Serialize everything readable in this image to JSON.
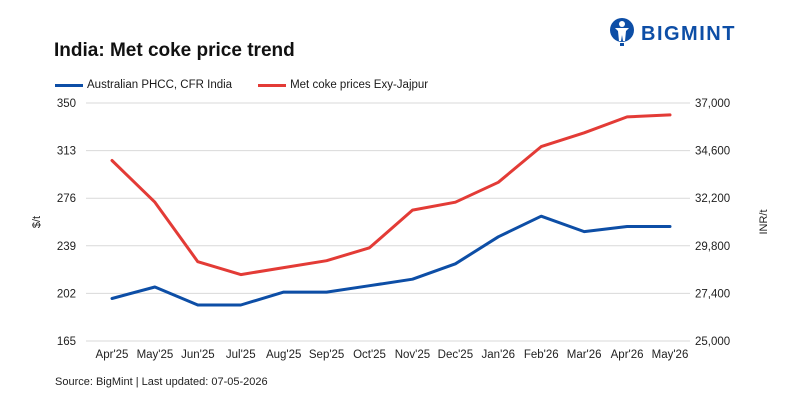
{
  "colors": {
    "brand": "#0d4ea6",
    "series1": "#0d4ea6",
    "series2": "#e33b36",
    "grid": "#d9d9d9"
  },
  "logo": {
    "text": "BIGMINT",
    "icon": "bigmint-figure-icon"
  },
  "chart_data": {
    "type": "line",
    "title": "India: Met coke price trend",
    "categories": [
      "Apr'25",
      "May'25",
      "Jun'25",
      "Jul'25",
      "Aug'25",
      "Sep'25",
      "Oct'25",
      "Nov'25",
      "Dec'25",
      "Jan'26",
      "Feb'26",
      "Mar'26",
      "Apr'26",
      "May'26"
    ],
    "ylabel": "$/t",
    "y2label": "INR/t",
    "ylim": [
      165,
      350
    ],
    "y2lim": [
      25000,
      37000
    ],
    "yticks": [
      "350",
      "313",
      "276",
      "239",
      "202",
      "165"
    ],
    "y2ticks": [
      "37,000",
      "34,600",
      "32,200",
      "29,800",
      "27,400",
      "25,000"
    ],
    "grid": true,
    "legend_position": "top-left",
    "series": [
      {
        "name": "Australian PHCC, CFR India",
        "axis": "left",
        "values": [
          198,
          207,
          193,
          193,
          203,
          203,
          208,
          213,
          225,
          246,
          262,
          250,
          254,
          254
        ]
      },
      {
        "name": "Met coke prices Exy-Jajpur",
        "axis": "right",
        "values": [
          34100,
          32000,
          29000,
          28350,
          28700,
          29050,
          29700,
          31600,
          32000,
          33000,
          34800,
          35500,
          36300,
          36400
        ]
      }
    ]
  },
  "footer": {
    "source": "Source: BigMint | Last updated: 07-05-2026"
  }
}
